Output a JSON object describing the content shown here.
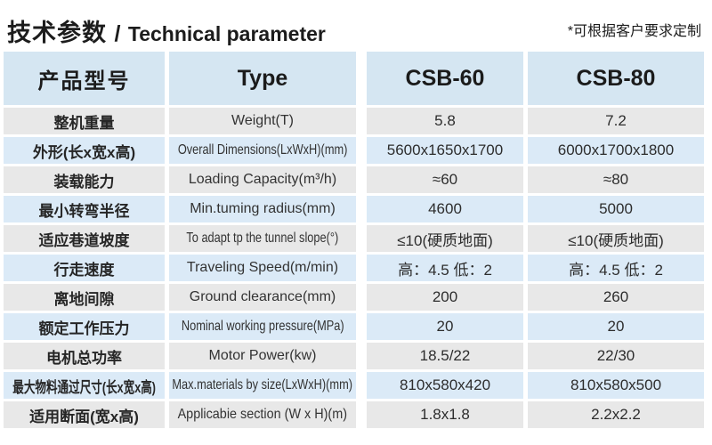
{
  "title": {
    "cn": "技术参数",
    "separator": "/",
    "en": "Technical parameter"
  },
  "note": "*可根据客户要求定制",
  "colors": {
    "header_bg": "#d5e6f2",
    "row_blue": "#dbeaf7",
    "row_grey": "#e8e8e8",
    "text": "#222222"
  },
  "table": {
    "headers": {
      "product_model": "产品型号",
      "type": "Type",
      "model_1": "CSB-60",
      "model_2": "CSB-80"
    },
    "rows": [
      {
        "cn": "整机重量",
        "en": "Weight(T)",
        "csb60": "5.8",
        "csb80": "7.2"
      },
      {
        "cn": "外形(长x宽x高)",
        "en": "Overall Dimensions(LxWxH)(mm)",
        "csb60": "5600x1650x1700",
        "csb80": "6000x1700x1800"
      },
      {
        "cn": "装载能力",
        "en": "Loading Capacity(m³/h)",
        "csb60": "≈60",
        "csb80": "≈80"
      },
      {
        "cn": "最小转弯半径",
        "en": "Min.tuming radius(mm)",
        "csb60": "4600",
        "csb80": "5000"
      },
      {
        "cn": "适应巷道坡度",
        "en": "To adapt tp the tunnel slope(°)",
        "csb60": "≤10(硬质地面)",
        "csb80": "≤10(硬质地面)"
      },
      {
        "cn": "行走速度",
        "en": "Traveling Speed(m/min)",
        "csb60": "高：4.5 低：2",
        "csb80": "高：4.5 低：2"
      },
      {
        "cn": "离地间隙",
        "en": "Ground clearance(mm)",
        "csb60": "200",
        "csb80": "260"
      },
      {
        "cn": "额定工作压力",
        "en": "Nominal working pressure(MPa)",
        "csb60": "20",
        "csb80": "20"
      },
      {
        "cn": "电机总功率",
        "en": "Motor Power(kw)",
        "csb60": "18.5/22",
        "csb80": "22/30"
      },
      {
        "cn": "最大物料通过尺寸(长x宽x高)",
        "en": "Max.materials by size(LxWxH)(mm)",
        "csb60": "810x580x420",
        "csb80": "810x580x500"
      },
      {
        "cn": "适用断面(宽x高)",
        "en": "Applicabie section (W x H)(m)",
        "csb60": "1.8x1.8",
        "csb80": "2.2x2.2"
      }
    ]
  }
}
